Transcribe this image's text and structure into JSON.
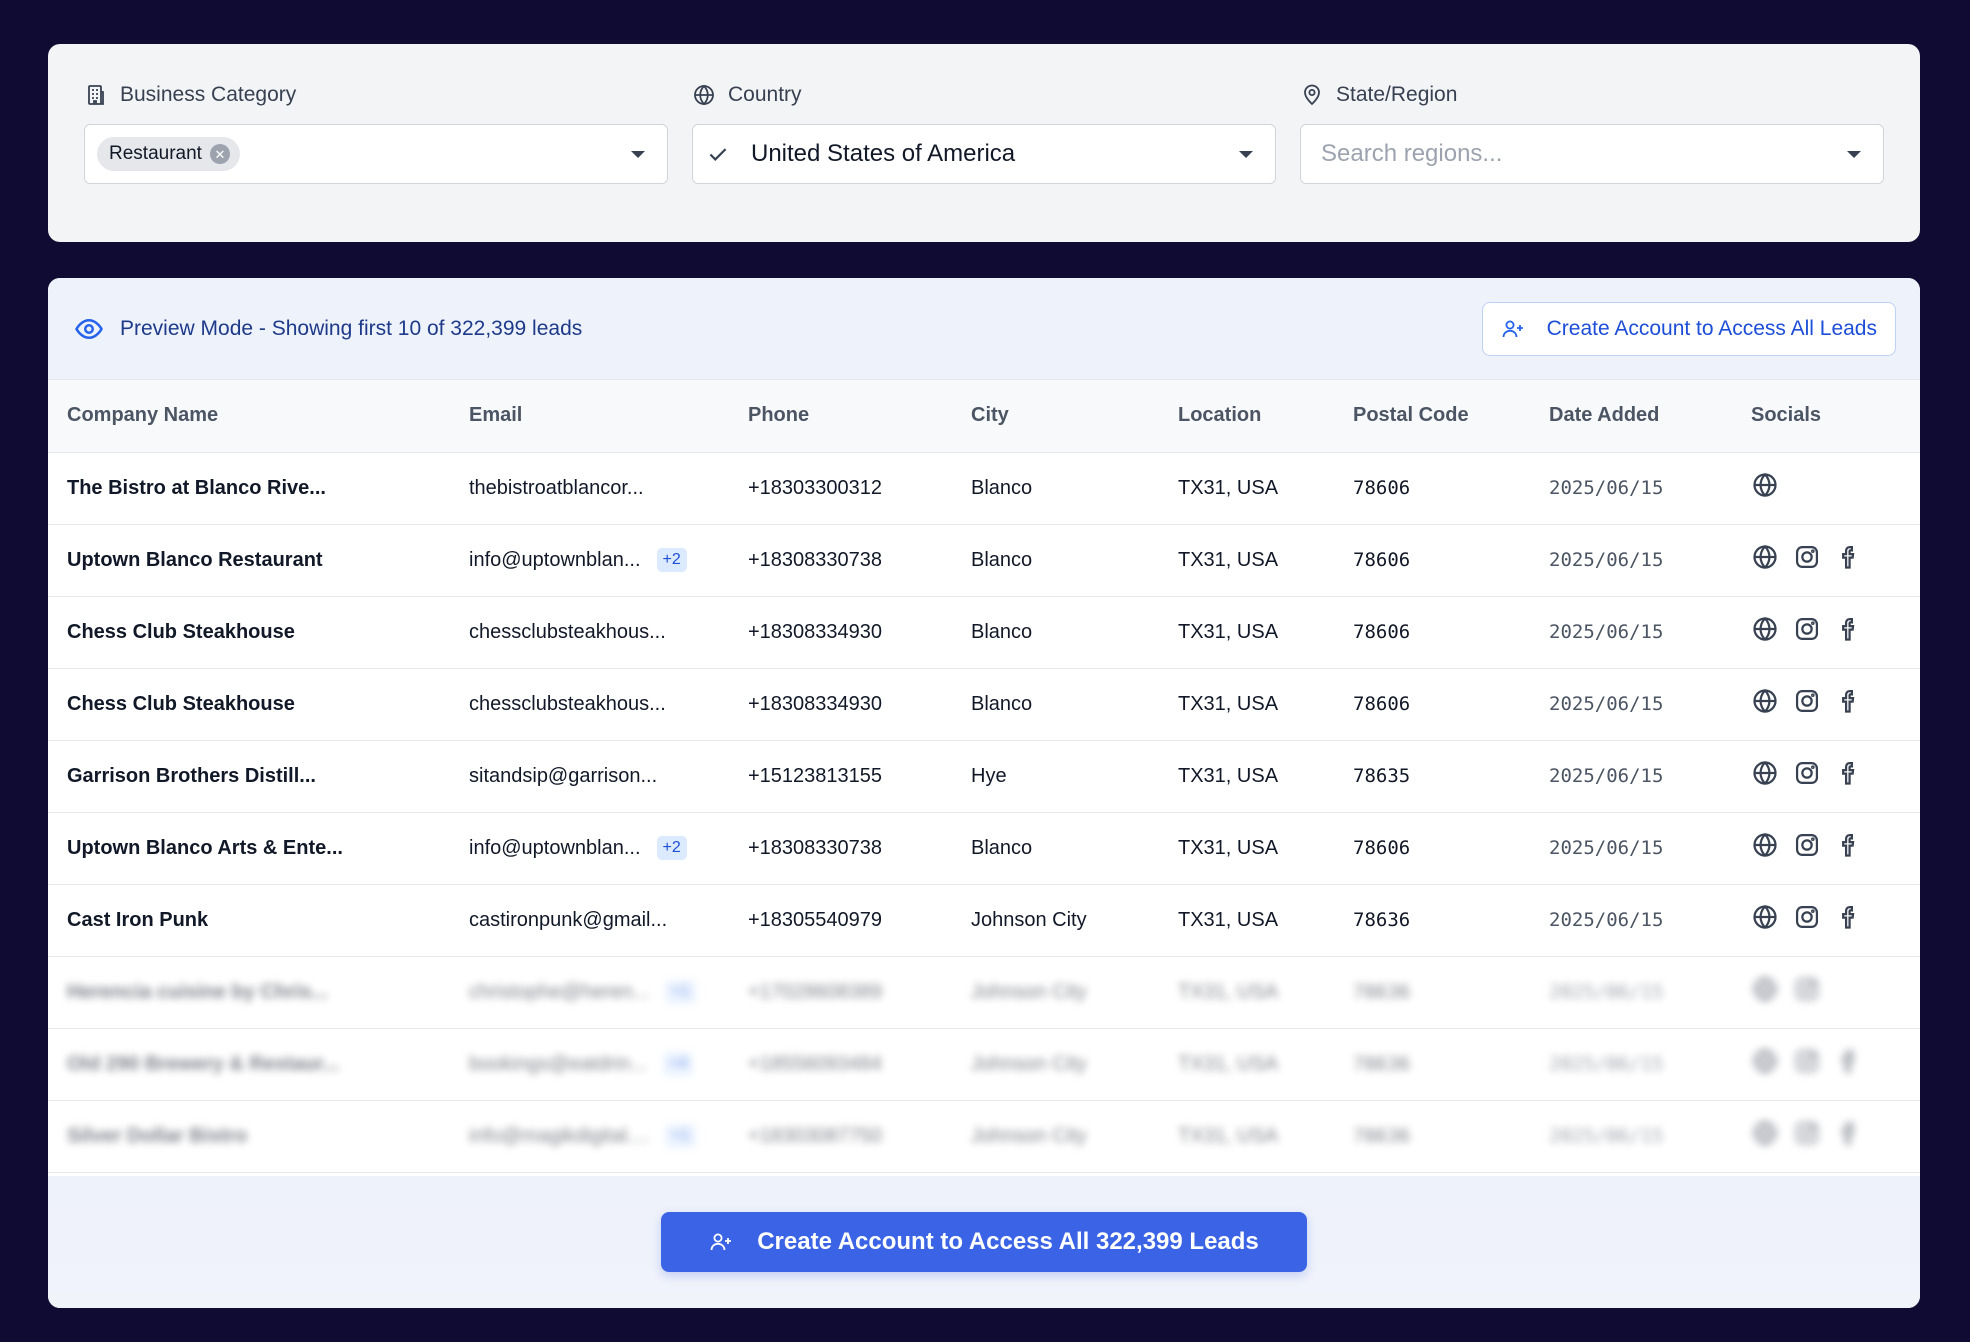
{
  "filters": {
    "business_category": {
      "label": "Business Category",
      "icon": "building-icon",
      "selected_chip": "Restaurant"
    },
    "country": {
      "label": "Country",
      "icon": "globe-icon",
      "value": "United States of America"
    },
    "region": {
      "label": "State/Region",
      "icon": "map-pin-icon",
      "placeholder": "Search regions..."
    }
  },
  "banner": {
    "text": "Preview Mode - Showing first 10 of 322,399 leads",
    "button_label": "Create Account to Access All Leads"
  },
  "table": {
    "headers": [
      "Company Name",
      "Email",
      "Phone",
      "City",
      "Location",
      "Postal Code",
      "Date Added",
      "Socials"
    ],
    "rows": [
      {
        "company": "The Bistro at Blanco Rive...",
        "email": "thebistroatblancor...",
        "extra": "",
        "phone": "+18303300312",
        "city": "Blanco",
        "location": "TX31, USA",
        "postal": "78606",
        "date": "2025/06/15",
        "socials": [
          "web"
        ],
        "blurred": false
      },
      {
        "company": "Uptown Blanco Restaurant",
        "email": "info@uptownblan...",
        "extra": "+2",
        "phone": "+18308330738",
        "city": "Blanco",
        "location": "TX31, USA",
        "postal": "78606",
        "date": "2025/06/15",
        "socials": [
          "web",
          "instagram",
          "facebook"
        ],
        "blurred": false
      },
      {
        "company": "Chess Club Steakhouse",
        "email": "chessclubsteakhous...",
        "extra": "",
        "phone": "+18308334930",
        "city": "Blanco",
        "location": "TX31, USA",
        "postal": "78606",
        "date": "2025/06/15",
        "socials": [
          "web",
          "instagram",
          "facebook"
        ],
        "blurred": false
      },
      {
        "company": "Chess Club Steakhouse",
        "email": "chessclubsteakhous...",
        "extra": "",
        "phone": "+18308334930",
        "city": "Blanco",
        "location": "TX31, USA",
        "postal": "78606",
        "date": "2025/06/15",
        "socials": [
          "web",
          "instagram",
          "facebook"
        ],
        "blurred": false
      },
      {
        "company": "Garrison Brothers Distill...",
        "email": "sitandsip@garrison...",
        "extra": "",
        "phone": "+15123813155",
        "city": "Hye",
        "location": "TX31, USA",
        "postal": "78635",
        "date": "2025/06/15",
        "socials": [
          "web",
          "instagram",
          "facebook"
        ],
        "blurred": false
      },
      {
        "company": "Uptown Blanco Arts & Ente...",
        "email": "info@uptownblan...",
        "extra": "+2",
        "phone": "+18308330738",
        "city": "Blanco",
        "location": "TX31, USA",
        "postal": "78606",
        "date": "2025/06/15",
        "socials": [
          "web",
          "instagram",
          "facebook"
        ],
        "blurred": false
      },
      {
        "company": "Cast Iron Punk",
        "email": "castironpunk@gmail...",
        "extra": "",
        "phone": "+18305540979",
        "city": "Johnson City",
        "location": "TX31, USA",
        "postal": "78636",
        "date": "2025/06/15",
        "socials": [
          "web",
          "instagram",
          "facebook"
        ],
        "blurred": false
      },
      {
        "company": "Herencia cuisine by Chris...",
        "email": "christophe@heren...",
        "extra": "+1",
        "phone": "+17028608389",
        "city": "Johnson City",
        "location": "TX31, USA",
        "postal": "78636",
        "date": "2025/06/15",
        "socials": [
          "web",
          "instagram"
        ],
        "blurred": true
      },
      {
        "company": "Old 290 Brewery & Restaur...",
        "email": "bookings@eatdrin...",
        "extra": "+4",
        "phone": "+18556093484",
        "city": "Johnson City",
        "location": "TX31, USA",
        "postal": "78636",
        "date": "2025/06/15",
        "socials": [
          "web",
          "instagram",
          "facebook"
        ],
        "blurred": true
      },
      {
        "company": "Silver Dollar Bistro",
        "email": "info@magikdigital....",
        "extra": "+1",
        "phone": "+18303087750",
        "city": "Johnson City",
        "location": "TX31, USA",
        "postal": "78636",
        "date": "2025/06/15",
        "socials": [
          "web",
          "instagram",
          "facebook"
        ],
        "blurred": true
      }
    ]
  },
  "footer": {
    "button_label": "Create Account to Access All 322,399 Leads",
    "button_icon": "user-plus-icon"
  },
  "colors": {
    "background": "#100b33",
    "accent": "#3a63e6",
    "banner_text": "#1e3a8a"
  }
}
